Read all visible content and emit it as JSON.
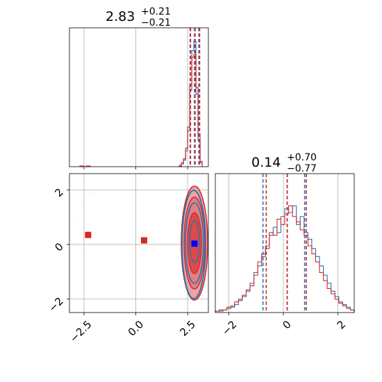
{
  "chart_data": [
    {
      "panel": "marginal-1",
      "type": "histogram",
      "title_value": "2.83",
      "title_plus": "+0.21",
      "title_minus": "−0.21",
      "xlim": [
        -3.2,
        3.5
      ],
      "ylim": [
        0,
        1
      ],
      "grid": true,
      "bins": [
        2.1,
        2.2,
        2.3,
        2.4,
        2.5,
        2.6,
        2.7,
        2.8,
        2.9,
        3.0,
        3.1,
        3.2
      ],
      "series": [
        {
          "color": "#1f77b4",
          "values": [
            0.0,
            0.02,
            0.05,
            0.12,
            0.27,
            0.58,
            0.88,
            0.95,
            0.55,
            0.2,
            0.03
          ]
        },
        {
          "color": "#d62728",
          "values": [
            0.01,
            0.03,
            0.06,
            0.14,
            0.3,
            0.62,
            0.83,
            0.85,
            0.6,
            0.25,
            0.04
          ]
        }
      ],
      "outlier_bins": {
        "color": "#d62728",
        "x": [
          -2.7,
          -2.4
        ],
        "values": [
          0.006,
          0.006
        ]
      },
      "quantiles": {
        "blue": [
          2.62,
          2.83,
          3.04
        ],
        "red": [
          2.64,
          2.86,
          3.08
        ]
      }
    },
    {
      "panel": "joint",
      "type": "scatter",
      "xlim": [
        -3.2,
        3.5
      ],
      "ylim": [
        -2.5,
        2.6
      ],
      "grid": true,
      "xticks": [
        "−2.5",
        "0.0",
        "2.5"
      ],
      "yticks": [
        "−2",
        "0",
        "2"
      ],
      "outliers": [
        {
          "x": -2.3,
          "y": 0.35
        },
        {
          "x": 0.4,
          "y": 0.15
        }
      ],
      "truth": {
        "x": 2.83,
        "y": 0.03
      },
      "colors": {
        "red": "#d62728",
        "blue": "#1f77b4",
        "fill": "#e8a0a0",
        "truth": "#0000ff"
      }
    },
    {
      "panel": "marginal-2",
      "type": "histogram",
      "title_value": "0.14",
      "title_plus": "+0.70",
      "title_minus": "−0.77",
      "xlim": [
        -2.5,
        2.6
      ],
      "ylim": [
        0,
        1
      ],
      "grid": true,
      "xticks": [
        "−2",
        "0",
        "2"
      ],
      "series": [
        {
          "color": "#1f77b4",
          "values": [
            0.01,
            0.01,
            0.02,
            0.03,
            0.04,
            0.06,
            0.1,
            0.12,
            0.16,
            0.22,
            0.3,
            0.35,
            0.42,
            0.5,
            0.58,
            0.64,
            0.6,
            0.72,
            0.78,
            0.75,
            0.8,
            0.66,
            0.72,
            0.6,
            0.55,
            0.48,
            0.42,
            0.35,
            0.28,
            0.22,
            0.16,
            0.12,
            0.08,
            0.06,
            0.04,
            0.02
          ]
        },
        {
          "color": "#d62728",
          "values": [
            0.01,
            0.02,
            0.02,
            0.04,
            0.05,
            0.08,
            0.09,
            0.13,
            0.17,
            0.2,
            0.28,
            0.38,
            0.44,
            0.48,
            0.6,
            0.58,
            0.7,
            0.66,
            0.74,
            0.8,
            0.72,
            0.68,
            0.62,
            0.58,
            0.5,
            0.44,
            0.38,
            0.3,
            0.24,
            0.18,
            0.14,
            0.1,
            0.07,
            0.05,
            0.03,
            0.02
          ]
        }
      ],
      "quantiles": {
        "blue": [
          -0.75,
          0.14,
          0.78
        ],
        "red": [
          -0.63,
          0.14,
          0.84
        ]
      }
    }
  ]
}
